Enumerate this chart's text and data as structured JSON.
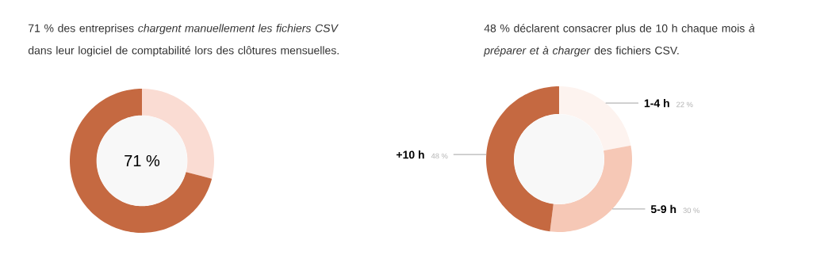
{
  "chart_data": [
    {
      "type": "donut",
      "title": "71 % des entreprises *chargent manuellement les fichiers CSV* dans leur logiciel de comptabilité lors des clôtures mensuelles.",
      "categories": [
        null,
        null
      ],
      "values": [
        29,
        71
      ],
      "colors": [
        "#fadcd3",
        "#c56941"
      ],
      "annotations": [
        "71 %"
      ]
    },
    {
      "type": "donut",
      "title": "48 % déclarent consacrer plus de 10 h chaque mois *à préparer et à charger* des fichiers CSV.",
      "categories": [
        "1-4 h",
        "5-9 h",
        "+10 h"
      ],
      "values": [
        22,
        30,
        48
      ],
      "colors": [
        "#fdf3ef",
        "#f6c8b6",
        "#c56941"
      ],
      "value_labels": [
        "22 %",
        "30 %",
        "48 %"
      ]
    }
  ]
}
